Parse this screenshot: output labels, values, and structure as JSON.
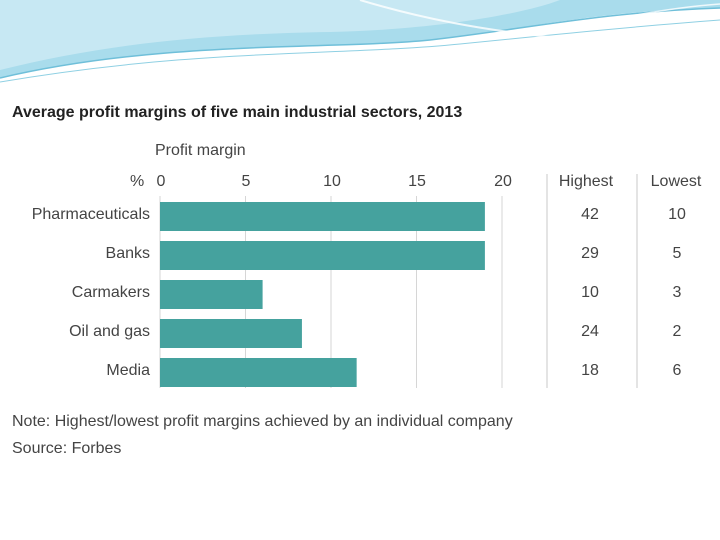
{
  "chart_data": {
    "type": "bar",
    "orientation": "horizontal",
    "title": "Average profit margins of five main industrial sectors, 2013",
    "xlabel": "Profit margin",
    "unit": "%",
    "xlim": [
      0,
      20
    ],
    "xticks": [
      "0",
      "5",
      "10",
      "15",
      "20"
    ],
    "grid": true,
    "categories": [
      "Pharmaceuticals",
      "Banks",
      "Carmakers",
      "Oil and gas",
      "Media"
    ],
    "values": [
      19,
      19,
      6,
      8.3,
      11.5
    ],
    "bar_color": "#45a29e",
    "table": {
      "headers": [
        "Highest",
        "Lowest"
      ],
      "highest": [
        "42",
        "29",
        "10",
        "24",
        "18"
      ],
      "lowest": [
        "10",
        "5",
        "3",
        "2",
        "6"
      ]
    },
    "note": "Note: Highest/lowest profit margins achieved by an individual company",
    "source": "Source: Forbes"
  }
}
